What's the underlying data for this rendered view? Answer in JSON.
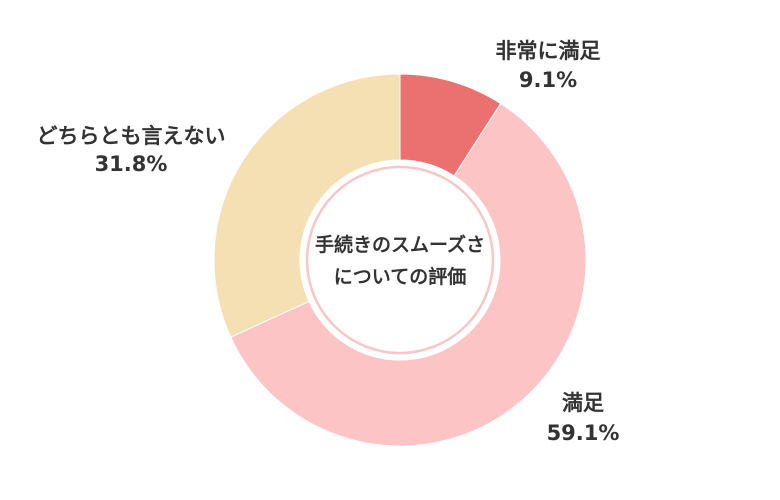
{
  "chart_data": {
    "type": "pie",
    "title": "",
    "center_text": [
      "手続きのスムーズさ",
      "についての評価"
    ],
    "categories": [
      "非常に満足",
      "満足",
      "どちらとも言えない"
    ],
    "values": [
      9.1,
      59.1,
      31.8
    ],
    "value_labels": [
      "9.1%",
      "59.1%",
      "31.8%"
    ],
    "colors": [
      "#eb7171",
      "#fcc4c5",
      "#f4e0b2"
    ],
    "legend": "none"
  }
}
